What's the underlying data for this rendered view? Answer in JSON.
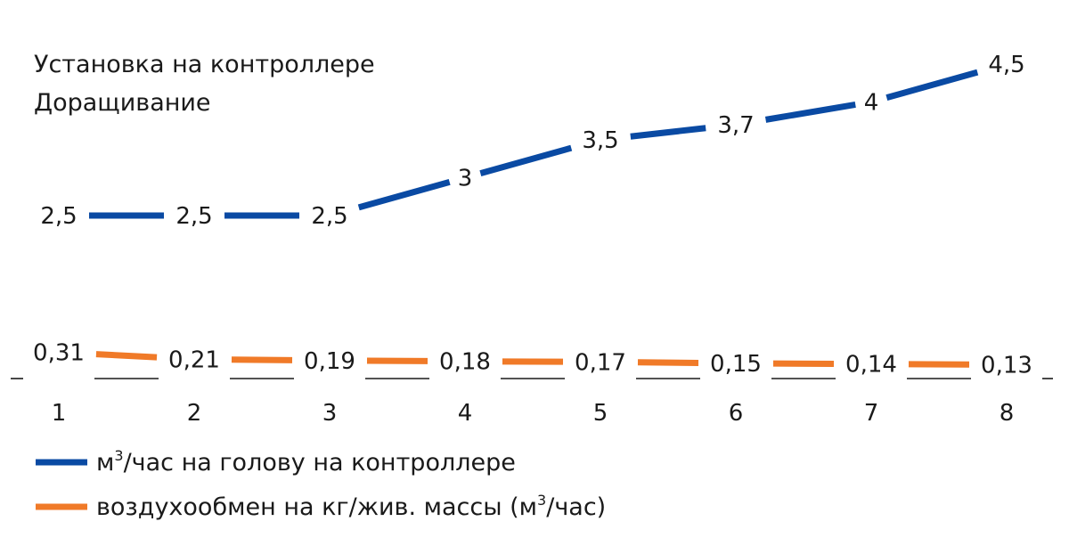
{
  "chart_data": {
    "type": "line",
    "title_lines": [
      "Установка на контроллере",
      "Доращивание"
    ],
    "categories": [
      "1",
      "2",
      "3",
      "4",
      "5",
      "6",
      "7",
      "8"
    ],
    "grid": false,
    "legend_position": "bottom-left",
    "series": [
      {
        "name": "м³/час на голову на контроллере",
        "legend_main": "м",
        "legend_sup": "3",
        "legend_rest": "/час на голову на контроллере",
        "color": "#0a4aa3",
        "values": [
          2.5,
          2.5,
          2.5,
          3,
          3.5,
          3.7,
          4,
          4.5
        ],
        "labels": [
          "2,5",
          "2,5",
          "2,5",
          "3",
          "3,5",
          "3,7",
          "4",
          "4,5"
        ]
      },
      {
        "name": "воздухообмен на кг/жив. массы (м³/час)",
        "legend_main": "воздухообмен на кг/жив. массы (м",
        "legend_sup": "3",
        "legend_rest": "/час)",
        "color": "#f07a28",
        "values": [
          0.31,
          0.21,
          0.19,
          0.18,
          0.17,
          0.15,
          0.14,
          0.13
        ],
        "labels": [
          "0,31",
          "0,21",
          "0,19",
          "0,18",
          "0,17",
          "0,15",
          "0,14",
          "0,13"
        ]
      }
    ]
  }
}
